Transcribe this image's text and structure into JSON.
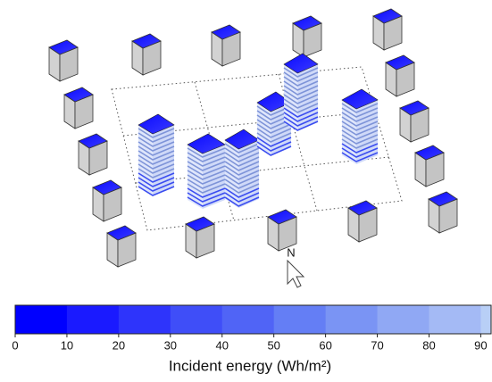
{
  "scene": {
    "north_label": "N"
  },
  "colorbar": {
    "label": "Incident energy (Wh/m²)",
    "lim": [
      0,
      92
    ],
    "ticks": [
      0,
      10,
      20,
      30,
      40,
      50,
      60,
      70,
      80,
      90
    ],
    "colors": [
      "#0000ff",
      "#1a1aff",
      "#2e34fb",
      "#3f4ef8",
      "#5064f6",
      "#647ef5",
      "#7a94f4",
      "#90a8f4",
      "#a4baf5",
      "#b8cff6"
    ]
  }
}
